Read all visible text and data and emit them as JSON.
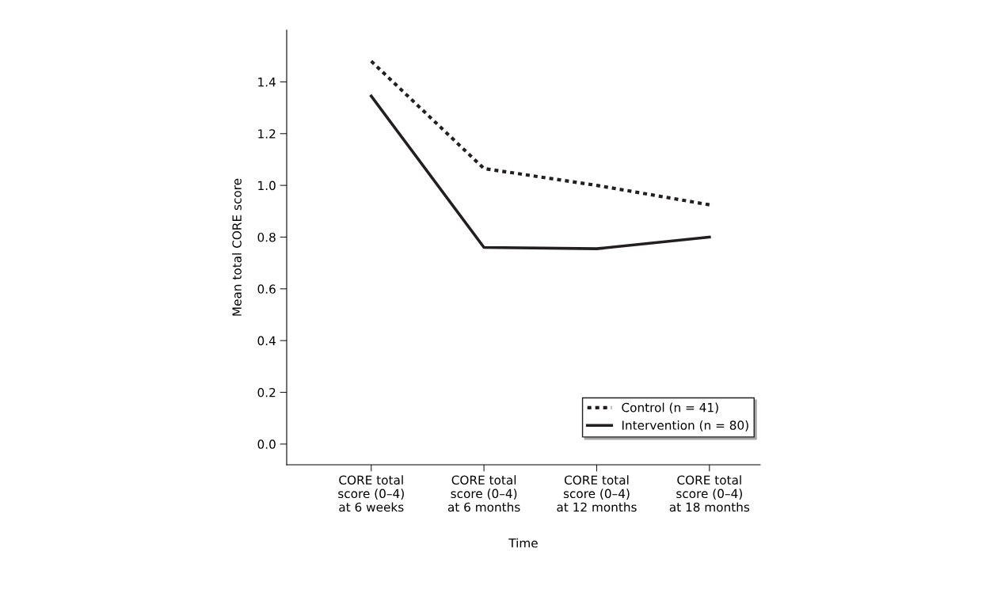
{
  "chart_data": {
    "type": "line",
    "xlabel": "Time",
    "ylabel": "Mean total CORE score",
    "categories": [
      "CORE total\nscore (0–4)\nat 6 weeks",
      "CORE total\nscore (0–4)\nat 6 months",
      "CORE total\nscore (0–4)\nat 12 months",
      "CORE total\nscore (0–4)\nat 18 months"
    ],
    "series": [
      {
        "name": "Control (n = 41)",
        "color": "#231f20",
        "line_style": "dotted",
        "values": [
          1.48,
          1.065,
          1.0,
          0.925
        ]
      },
      {
        "name": "Intervention (n = 80)",
        "color": "#231f20",
        "line_style": "solid",
        "values": [
          1.345,
          0.76,
          0.755,
          0.8
        ]
      }
    ],
    "ylim": [
      -0.08,
      1.6
    ],
    "yticks": [
      {
        "value": 0,
        "label": "0.0"
      },
      0.2,
      0.4,
      0.6,
      0.8,
      {
        "value": 1,
        "label": "1.0"
      },
      1.2,
      1.4
    ],
    "legend": "bottom right",
    "grid": false,
    "marker": "none"
  }
}
